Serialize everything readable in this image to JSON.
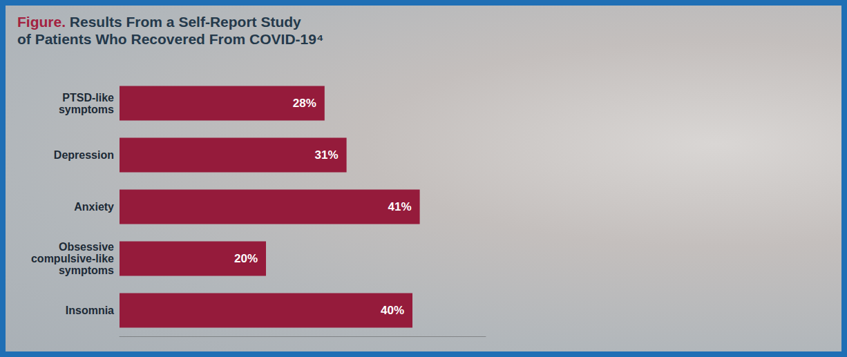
{
  "chart_data": {
    "type": "bar",
    "orientation": "horizontal",
    "title": "Figure. Results From a Self-Report Study of Patients Who Recovered From COVID-19⁴",
    "categories": [
      "PTSD-like symptoms",
      "Depression",
      "Anxiety",
      "Obsessive compulsive-like symptoms",
      "Insomnia"
    ],
    "values": [
      28,
      31,
      41,
      20,
      40
    ],
    "value_labels": [
      "28%",
      "31%",
      "41%",
      "20%",
      "40%"
    ],
    "color": "#951b3b",
    "xlim": [
      0,
      50
    ],
    "tick_labels": false,
    "grid": false,
    "data_labels": true
  }
}
